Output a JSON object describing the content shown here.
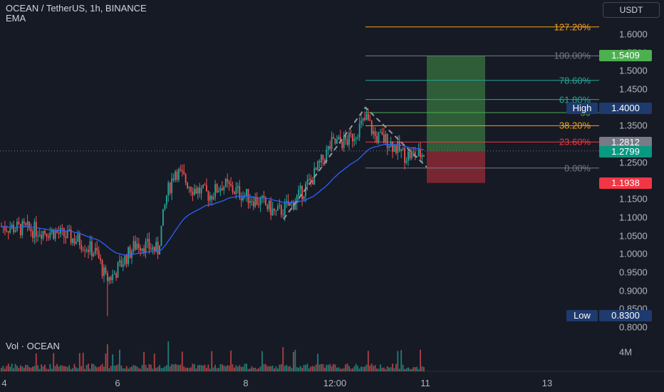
{
  "header": {
    "symbol_line": "OCEAN / TetherUS, 1h, BINANCE",
    "indicator": "EMA",
    "volume_label": "Vol · OCEAN"
  },
  "currency_button": "USDT",
  "price_axis": {
    "ticks": [
      "1.6000",
      "1.5500",
      "1.5000",
      "1.4500",
      "1.4000",
      "1.3500",
      "1.3000",
      "1.2500",
      "1.2000",
      "1.1500",
      "1.1000",
      "1.0500",
      "1.0000",
      "0.9500",
      "0.9000",
      "0.8500",
      "0.8000"
    ],
    "volume_tick": "4M"
  },
  "time_axis": {
    "ticks": [
      "4",
      "6",
      "8",
      "12:00",
      "11",
      "13"
    ]
  },
  "fib_levels": [
    {
      "label": "127.20%",
      "price": 1.62,
      "color": "#f7a21b"
    },
    {
      "label": "100.00%",
      "price": 1.5409,
      "color": "#787b86"
    },
    {
      "label": "78.60%",
      "price": 1.4739,
      "color": "#26a69a"
    },
    {
      "label": "61.80%",
      "price": 1.4216,
      "color": "#26a69a"
    },
    {
      "label": "50",
      "price": 1.3859,
      "color": "#4caf50"
    },
    {
      "label": "38.20%",
      "price": 1.3502,
      "color": "#f7a21b"
    },
    {
      "label": "23.60%",
      "price": 1.3055,
      "color": "#f23645"
    },
    {
      "label": "0.00%",
      "price": 1.2345,
      "color": "#787b86"
    }
  ],
  "price_labels": {
    "target": {
      "text": "1.5409",
      "color": "#4caf50"
    },
    "high_tag": "High",
    "high": {
      "text": "1.4000",
      "color": "#1e3a6e"
    },
    "last": {
      "text": "1.2812",
      "color": "#787b86"
    },
    "current": {
      "text": "1.2799",
      "color": "#089981"
    },
    "stop": {
      "text": "1.1938",
      "color": "#f23645"
    },
    "low_tag": "Low",
    "low": {
      "text": "0.8300",
      "color": "#1e3a6e"
    }
  },
  "colors": {
    "up": "#26a69a",
    "down": "#ef5350",
    "ema": "#2962ff",
    "background": "#161a25"
  },
  "chart_data": {
    "type": "candlestick",
    "symbol": "OCEAN/USDT",
    "interval": "1h",
    "ylim": [
      0.8,
      1.6
    ],
    "high": 1.4,
    "low": 0.83,
    "last_price": 1.2799,
    "position": {
      "entry": 1.2812,
      "target": 1.5409,
      "stop": 1.1938
    },
    "fib_range": {
      "from": 1.2345,
      "to": 1.5409
    }
  }
}
